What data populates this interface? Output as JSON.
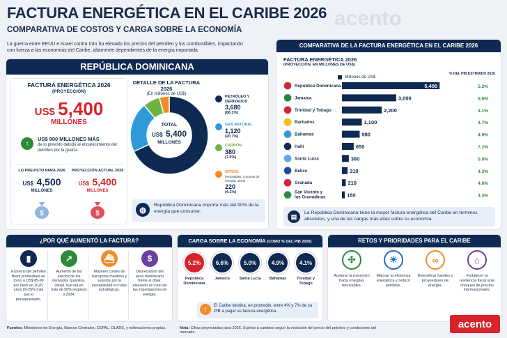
{
  "header": {
    "title": "FACTURA ENERGÉTICA EN EL CARIBE 2026",
    "subtitle": "COMPARATIVA DE COSTOS Y CARGA SOBRE LA ECONOMÍA",
    "intro": "La guerra entre EEUU e Israel contra Irán ha elevado los precios del petróleo y los combustibles, impactando con fuerza a las economías del Caribe, altamente dependientes de la energía importada.",
    "brand": "acento"
  },
  "rd": {
    "heading": "REPÚBLICA DOMINICANA",
    "factura_title": "FACTURA ENERGÉTICA 2026",
    "factura_sub": "(PROYECCIÓN)",
    "currency": "US$",
    "amount": "5,400",
    "amount_unit": "MILLONES",
    "extra_bold": "US$ 900 MILLONES MÁS",
    "extra_text": "de lo previsto debido al encarecimiento del petróleo por la guerra.",
    "previsto_label": "LO PREVISTO PARA 2026",
    "previsto_cur": "US$",
    "previsto_amt": "4,500",
    "previsto_unit": "MILLONES",
    "actual_label": "PROYECCIÓN ACTUAL 2026",
    "actual_cur": "US$",
    "actual_amt": "5,400",
    "actual_unit": "MILLONES"
  },
  "detalle": {
    "title": "DETALLE DE LA FACTURA 2026",
    "subtitle": "(En millones de US$)",
    "center_label": "TOTAL",
    "center_cur": "US$",
    "center_value": "5,400",
    "center_unit": "MILLONES",
    "note": "República Dominicana importa más del 90% de la energía que consume."
  },
  "chart_data": [
    {
      "type": "pie",
      "title": "DETALLE DE LA FACTURA 2026",
      "categories": [
        "PETRÓLEO Y DERIVADOS",
        "GAS NATURAL",
        "CARBÓN",
        "OTROS"
      ],
      "category_notes": [
        "",
        "",
        "",
        "(renovables, compras de energía, otros)"
      ],
      "values": [
        3680,
        1120,
        380,
        220
      ],
      "value_labels": [
        "3,680",
        "1,120",
        "380",
        "220"
      ],
      "percent_labels": [
        "(68.1%)",
        "(20.7%)",
        "(7.0%)",
        "(4.1%)"
      ],
      "colors": [
        "#0f2a52",
        "#2f9ad8",
        "#6cb33f",
        "#f28c28"
      ]
    },
    {
      "type": "bar",
      "title": "FACTURA ENERGÉTICA 2026",
      "subtitle": "(PROYECCIÓN, EN MILLONES DE US$)",
      "legend": "Millones de US$",
      "pct_header": "% DEL PIB ESTIMADO 2026",
      "categories": [
        "República Dominicana",
        "Jamaica",
        "Trinidad y Tobago",
        "Barbados",
        "Bahamas",
        "Haití",
        "Santa Lucía",
        "Belice",
        "Granada",
        "San Vicente y las Granadinas"
      ],
      "values": [
        5400,
        3000,
        2200,
        1100,
        980,
        650,
        380,
        310,
        210,
        160
      ],
      "value_labels": [
        "5,400",
        "3,000",
        "2,200",
        "1,100",
        "980",
        "650",
        "380",
        "310",
        "210",
        "160"
      ],
      "pct": [
        "5.2%",
        "6.6%",
        "4.1%",
        "4.7%",
        "4.9%",
        "7.2%",
        "5.0%",
        "4.3%",
        "4.6%",
        "4.4%"
      ],
      "xlim": [
        0,
        5700
      ]
    },
    {
      "type": "table",
      "title": "CARGA SOBRE LA ECONOMÍA",
      "title_note": "(COMO % DEL PIB 2026)",
      "categories": [
        "República Dominicana",
        "Jamaica",
        "Santa Lucía",
        "Bahamas",
        "Trinidad y Tobago"
      ],
      "values": [
        "5.2%",
        "6.6%",
        "5.0%",
        "4.9%",
        "4.1%"
      ]
    }
  ],
  "comparativa": {
    "heading": "COMPARATIVA DE LA FACTURA ENERGÉTICA EN EL CARIBE 2026",
    "note": "La República Dominicana tiene la mayor factura energética del Caribe en términos absolutos, y una de las cargas más altas sobre su economía."
  },
  "porque": {
    "heading": "¿POR QUÉ AUMENTÓ LA FACTURA?",
    "items": [
      {
        "icon": "oil-barrel-icon",
        "text": "El precio del petróleo Brent promediará en torno a US$ 85-90 por barril en 2026, unos 20-25% más que lo presupuestado."
      },
      {
        "icon": "rising-chart-icon",
        "text": "Aumento de los precios de los derivados (gasolina, diésel, fuel oil) en más de 50% respecto a 2024."
      },
      {
        "icon": "ship-icon",
        "text": "Mayores costes de transporte marítimo y seguros por la inestabilidad en rutas estratégicas."
      },
      {
        "icon": "dollar-icon",
        "text": "Depreciación del peso dominicano frente al dólar, elevando el costo de las importaciones de energía."
      }
    ]
  },
  "carga": {
    "heading": "CARGA SOBRE LA ECONOMÍA",
    "heading_note": "(COMO % DEL PIB 2026)",
    "note": "El Caribe destina, en promedio, entre 4% y 7% de su PIB a pagar su factura energética."
  },
  "retos": {
    "heading": "RETOS Y PRIORIDADES PARA EL CARIBE",
    "items": [
      {
        "icon": "wind-turbine-icon",
        "text": "Acelerar la transición hacia energías renovables."
      },
      {
        "icon": "lightbulb-icon",
        "text": "Mejorar la eficiencia energética y reducir pérdidas."
      },
      {
        "icon": "chain-link-icon",
        "text": "Diversificar fuentes y proveedores de energía."
      },
      {
        "icon": "bank-icon",
        "text": "Fortalecer la resiliencia fiscal ante choques de precios internacionales."
      }
    ]
  },
  "footer": {
    "sources_label": "Fuentes:",
    "sources": "Ministerios de Energía, Bancos Centrales, CEPAL, OLADE, y estimaciones propias.",
    "note_label": "Nota:",
    "note": "Cifras proyectadas para 2026. Sujetos a cambios según la evolución del precio del petróleo y condiciones del mercado.",
    "brand": "acento"
  }
}
